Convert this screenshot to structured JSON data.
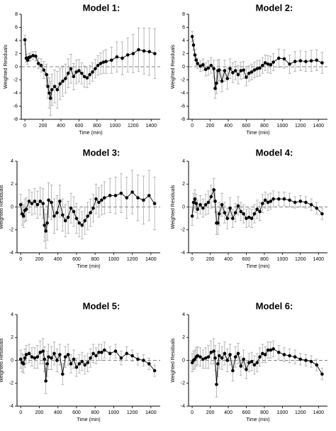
{
  "colors": {
    "points": "#000000",
    "line": "#000000",
    "errorbar": "#a8a8a8",
    "zero_line": "#808080",
    "axis": "#000000"
  },
  "chart_data": [
    {
      "type": "scatter",
      "title": "Model 1:",
      "xlabel": "Time (min)",
      "ylabel": "Weighted Residuals",
      "xlim": [
        -40,
        1500
      ],
      "ylim": [
        -8,
        8
      ],
      "xticks": [
        0,
        200,
        400,
        600,
        800,
        1000,
        1200,
        1400
      ],
      "yticks": [
        -8,
        -6,
        -4,
        -2,
        0,
        2,
        4,
        6,
        8
      ],
      "zero_line": "dashed",
      "grid": false,
      "series": [
        {
          "x": [
            0,
            15,
            30,
            45,
            60,
            90,
            120,
            150,
            180,
            210,
            240,
            255,
            270,
            285,
            300,
            330,
            360,
            390,
            420,
            450,
            480,
            510,
            540,
            570,
            600,
            630,
            660,
            690,
            720,
            750,
            780,
            810,
            840,
            870,
            900,
            960,
            1020,
            1080,
            1140,
            1200,
            1260,
            1320,
            1380,
            1440
          ],
          "y": [
            4.1,
            1.3,
            1.0,
            1.4,
            1.5,
            1.7,
            1.6,
            0.5,
            0.2,
            -0.5,
            -1.2,
            -3.0,
            -4.0,
            -4.8,
            -3.5,
            -3.0,
            -3.5,
            -2.6,
            -2.2,
            -1.8,
            -1.0,
            -0.3,
            -1.5,
            -0.8,
            -0.6,
            -1.0,
            -1.5,
            -1.7,
            -1.2,
            -0.8,
            -0.3,
            0.2,
            0.5,
            0.7,
            0.8,
            1.0,
            1.5,
            1.3,
            1.8,
            2.0,
            2.6,
            2.4,
            2.3,
            2.0
          ],
          "err": [
            0.7,
            0.6,
            0.6,
            0.6,
            0.6,
            0.6,
            0.7,
            0.8,
            1.0,
            1.3,
            1.6,
            1.8,
            2.3,
            2.6,
            2.4,
            2.5,
            2.8,
            2.4,
            2.3,
            2.2,
            2.2,
            2.2,
            2.0,
            1.8,
            1.7,
            1.6,
            1.6,
            1.5,
            1.4,
            1.4,
            1.4,
            1.5,
            1.6,
            1.7,
            1.8,
            2.0,
            2.3,
            2.5,
            2.6,
            2.9,
            3.3,
            3.5,
            3.6,
            3.8
          ]
        }
      ]
    },
    {
      "type": "scatter",
      "title": "Model 2:",
      "xlabel": "Time (min)",
      "ylabel": "Weighted Residuals",
      "xlim": [
        -40,
        1500
      ],
      "ylim": [
        -8,
        8
      ],
      "xticks": [
        0,
        200,
        400,
        600,
        800,
        1000,
        1200,
        1400
      ],
      "yticks": [
        -8,
        -6,
        -4,
        -2,
        0,
        2,
        4,
        6,
        8
      ],
      "zero_line": "dashed",
      "grid": false,
      "series": [
        {
          "x": [
            0,
            15,
            30,
            45,
            60,
            90,
            120,
            150,
            180,
            210,
            240,
            255,
            270,
            285,
            300,
            330,
            360,
            390,
            420,
            450,
            480,
            510,
            540,
            570,
            600,
            630,
            660,
            690,
            720,
            750,
            780,
            810,
            840,
            870,
            900,
            960,
            1020,
            1080,
            1140,
            1200,
            1260,
            1320,
            1380,
            1440
          ],
          "y": [
            4.6,
            3.3,
            1.8,
            1.0,
            0.5,
            0.1,
            0.3,
            -0.4,
            -0.2,
            0.2,
            -0.3,
            -3.3,
            -2.5,
            -0.6,
            -0.5,
            -2.2,
            -0.6,
            -1.8,
            -0.3,
            -0.9,
            -0.6,
            -1.2,
            -0.6,
            -0.5,
            -1.6,
            -1.0,
            -0.8,
            -0.5,
            -0.3,
            -0.2,
            0.2,
            0.6,
            0.4,
            0.3,
            0.7,
            1.3,
            1.2,
            0.4,
            0.8,
            0.9,
            0.8,
            0.9,
            1.0,
            0.6
          ],
          "err": [
            0.8,
            0.8,
            0.8,
            0.8,
            0.8,
            0.8,
            0.9,
            1.0,
            1.1,
            1.2,
            1.3,
            1.5,
            1.6,
            1.6,
            1.6,
            1.6,
            1.6,
            1.6,
            1.5,
            1.5,
            1.4,
            1.4,
            1.3,
            1.3,
            1.3,
            1.2,
            1.2,
            1.2,
            1.2,
            1.2,
            1.2,
            1.2,
            1.3,
            1.3,
            1.3,
            1.4,
            1.4,
            1.4,
            1.5,
            1.5,
            1.5,
            1.6,
            1.6,
            1.6
          ]
        }
      ]
    },
    {
      "type": "scatter",
      "title": "Model 3:",
      "xlabel": "Time (min)",
      "ylabel": "Weighted Residuals",
      "xlim": [
        -40,
        1500
      ],
      "ylim": [
        -4,
        4
      ],
      "xticks": [
        0,
        200,
        400,
        600,
        800,
        1000,
        1200,
        1400
      ],
      "yticks": [
        -4,
        -2,
        0,
        2,
        4
      ],
      "zero_line": "dashed",
      "grid": false,
      "series": [
        {
          "x": [
            0,
            15,
            30,
            45,
            60,
            90,
            120,
            150,
            180,
            210,
            240,
            255,
            270,
            285,
            300,
            330,
            360,
            390,
            420,
            450,
            480,
            510,
            540,
            570,
            600,
            630,
            660,
            690,
            720,
            750,
            780,
            810,
            840,
            870,
            900,
            960,
            1020,
            1080,
            1140,
            1200,
            1260,
            1320,
            1380,
            1440
          ],
          "y": [
            0.2,
            -0.6,
            -0.8,
            -0.3,
            -0.2,
            0.5,
            0.3,
            0.5,
            0.2,
            0.5,
            0.3,
            -1.6,
            -2.1,
            -1.4,
            0.6,
            0.4,
            -0.8,
            -0.5,
            0.5,
            -0.7,
            -1.2,
            -0.9,
            -0.1,
            -0.4,
            -1.0,
            -1.4,
            -1.6,
            -1.2,
            -0.8,
            -0.5,
            -0.1,
            0.7,
            0.4,
            0.6,
            0.8,
            1.0,
            1.0,
            1.2,
            0.8,
            1.3,
            0.8,
            0.6,
            1.0,
            0.3
          ],
          "err": [
            0.9,
            1.0,
            1.0,
            1.0,
            1.0,
            1.0,
            1.0,
            1.1,
            1.2,
            1.2,
            1.3,
            1.4,
            1.5,
            1.5,
            1.5,
            1.5,
            1.5,
            1.5,
            1.4,
            1.4,
            1.4,
            1.4,
            1.3,
            1.3,
            1.3,
            1.2,
            1.2,
            1.2,
            1.2,
            1.2,
            1.2,
            1.3,
            1.3,
            1.3,
            1.4,
            1.5,
            1.6,
            1.7,
            1.8,
            1.9,
            2.0,
            2.1,
            2.2,
            2.3
          ]
        }
      ]
    },
    {
      "type": "scatter",
      "title": "Model 4:",
      "xlabel": "Time (min)",
      "ylabel": "Weighted Residuals",
      "xlim": [
        -40,
        1500
      ],
      "ylim": [
        -4,
        4
      ],
      "xticks": [
        0,
        200,
        400,
        600,
        800,
        1000,
        1200,
        1400
      ],
      "yticks": [
        -4,
        -2,
        0,
        2,
        4
      ],
      "zero_line": "dashed",
      "grid": false,
      "series": [
        {
          "x": [
            0,
            15,
            30,
            45,
            60,
            90,
            120,
            150,
            180,
            210,
            240,
            255,
            270,
            285,
            300,
            330,
            360,
            390,
            420,
            450,
            480,
            510,
            540,
            570,
            600,
            630,
            660,
            690,
            720,
            750,
            780,
            810,
            840,
            870,
            900,
            960,
            1020,
            1080,
            1140,
            1200,
            1260,
            1320,
            1380,
            1440
          ],
          "y": [
            -0.8,
            0.4,
            0.7,
            0.3,
            -0.2,
            0.2,
            -0.1,
            0.2,
            0.4,
            0.9,
            1.5,
            0.5,
            -1.4,
            -1.4,
            -0.6,
            0.2,
            -0.5,
            -1.0,
            -0.1,
            -1.0,
            -0.5,
            0.1,
            -0.4,
            -0.6,
            -1.0,
            -0.9,
            -1.0,
            -0.6,
            -0.2,
            -0.4,
            0.3,
            0.6,
            0.4,
            0.5,
            0.7,
            0.7,
            0.7,
            0.6,
            0.4,
            0.5,
            0.4,
            0.2,
            -0.1,
            -0.6
          ],
          "err": [
            0.8,
            0.8,
            0.8,
            0.8,
            0.8,
            0.8,
            0.8,
            0.9,
            1.0,
            1.0,
            1.0,
            1.0,
            1.0,
            1.0,
            1.0,
            1.0,
            0.9,
            0.9,
            0.9,
            0.8,
            0.8,
            0.8,
            0.8,
            0.8,
            0.8,
            0.8,
            0.8,
            0.8,
            0.8,
            0.8,
            0.8,
            0.7,
            0.7,
            0.7,
            0.7,
            0.6,
            0.6,
            0.6,
            0.5,
            0.5,
            0.5,
            0.5,
            0.5,
            0.5
          ]
        }
      ]
    },
    {
      "type": "scatter",
      "title": "Model 5:",
      "xlabel": "Time (min)",
      "ylabel": "Weighted Residuals",
      "xlim": [
        -40,
        1500
      ],
      "ylim": [
        -4,
        4
      ],
      "xticks": [
        0,
        200,
        400,
        600,
        800,
        1000,
        1200,
        1400
      ],
      "yticks": [
        -4,
        -2,
        0,
        2,
        4
      ],
      "zero_line": "dashed",
      "grid": false,
      "series": [
        {
          "x": [
            0,
            15,
            30,
            45,
            60,
            90,
            120,
            150,
            180,
            210,
            240,
            255,
            270,
            285,
            300,
            330,
            360,
            390,
            420,
            450,
            480,
            510,
            540,
            570,
            600,
            630,
            660,
            690,
            720,
            750,
            780,
            810,
            840,
            870,
            900,
            960,
            1020,
            1080,
            1140,
            1200,
            1260,
            1320,
            1380,
            1440
          ],
          "y": [
            0.1,
            -0.2,
            -0.3,
            0.2,
            0.5,
            0.6,
            0.3,
            0.2,
            0.3,
            0.7,
            0.8,
            0.1,
            -1.8,
            -0.3,
            0.3,
            0.2,
            0.6,
            0.0,
            0.5,
            -1.2,
            0.3,
            0.5,
            -0.3,
            0.1,
            -0.6,
            -0.3,
            -0.1,
            -0.4,
            -0.2,
            0.2,
            0.6,
            0.4,
            0.7,
            0.7,
            0.9,
            0.6,
            0.8,
            0.2,
            0.6,
            0.4,
            0.1,
            0.0,
            -0.3,
            -0.9
          ],
          "err": [
            0.8,
            0.8,
            0.8,
            0.8,
            0.8,
            0.8,
            0.8,
            0.9,
            1.0,
            1.0,
            1.1,
            1.1,
            1.1,
            1.1,
            1.1,
            1.0,
            1.0,
            1.0,
            0.9,
            0.9,
            0.9,
            0.9,
            0.8,
            0.8,
            0.8,
            0.8,
            0.8,
            0.8,
            0.8,
            0.8,
            0.8,
            0.7,
            0.7,
            0.7,
            0.7,
            0.6,
            0.6,
            0.6,
            0.6,
            0.5,
            0.5,
            0.5,
            0.5,
            0.5
          ]
        }
      ]
    },
    {
      "type": "scatter",
      "title": "Model 6:",
      "xlabel": "Time (min)",
      "ylabel": "Weighted Residuals",
      "xlim": [
        -40,
        1500
      ],
      "ylim": [
        -4,
        4
      ],
      "xticks": [
        0,
        200,
        400,
        600,
        800,
        1000,
        1200,
        1400
      ],
      "yticks": [
        -4,
        -2,
        0,
        2,
        4
      ],
      "zero_line": "dashed",
      "grid": false,
      "series": [
        {
          "x": [
            0,
            15,
            30,
            45,
            60,
            90,
            120,
            150,
            180,
            210,
            240,
            255,
            270,
            285,
            300,
            330,
            360,
            390,
            420,
            450,
            480,
            510,
            540,
            570,
            600,
            630,
            660,
            690,
            720,
            750,
            780,
            810,
            840,
            870,
            900,
            960,
            1020,
            1080,
            1140,
            1200,
            1260,
            1320,
            1380,
            1440
          ],
          "y": [
            -0.2,
            0.0,
            0.1,
            0.3,
            0.4,
            0.3,
            0.1,
            0.2,
            0.3,
            0.7,
            0.8,
            0.2,
            -2.1,
            -0.3,
            0.4,
            0.2,
            0.6,
            0.0,
            0.5,
            -0.9,
            0.3,
            0.6,
            -0.5,
            0.1,
            -0.8,
            -0.2,
            -0.1,
            -0.4,
            -0.2,
            0.3,
            0.6,
            0.5,
            0.9,
            0.9,
            1.0,
            0.7,
            0.5,
            0.4,
            0.3,
            0.1,
            0.0,
            -0.1,
            -0.4,
            -1.2
          ],
          "err": [
            0.8,
            0.8,
            0.8,
            0.8,
            0.8,
            0.8,
            0.8,
            0.9,
            1.0,
            1.0,
            1.1,
            1.1,
            1.1,
            1.1,
            1.1,
            1.0,
            1.0,
            1.0,
            0.9,
            0.9,
            0.9,
            0.9,
            0.8,
            0.8,
            0.8,
            0.8,
            0.8,
            0.8,
            0.8,
            0.8,
            0.8,
            0.7,
            0.7,
            0.7,
            0.7,
            0.6,
            0.6,
            0.6,
            0.6,
            0.5,
            0.5,
            0.5,
            0.5,
            0.5
          ]
        }
      ]
    }
  ]
}
